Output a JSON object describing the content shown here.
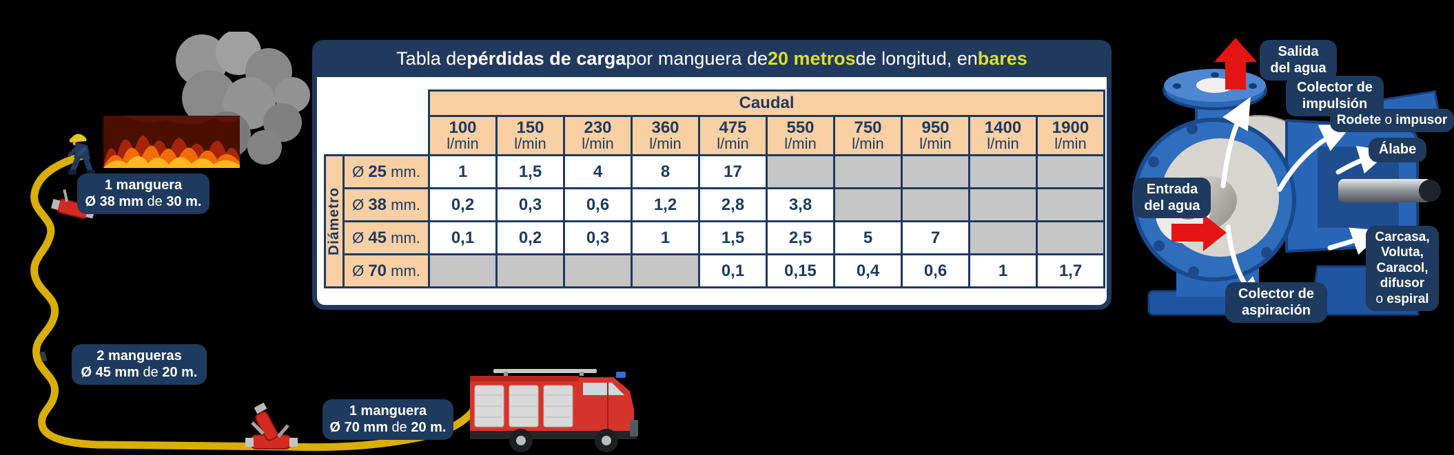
{
  "table": {
    "title": {
      "p1": "Tabla de ",
      "p2": "pérdidas de carga",
      "p3": " por manguera de ",
      "p4": "20 metros",
      "p5": " de longitud, en ",
      "p6": "bares"
    },
    "caudal_header": "Caudal",
    "diameter_header": "Diámetro",
    "unit": "l/min",
    "flows": [
      "100",
      "150",
      "230",
      "360",
      "475",
      "550",
      "750",
      "950",
      "1400",
      "1900"
    ],
    "diameter_prefix": "Ø",
    "diameter_unit": "mm.",
    "rows": [
      {
        "diameter": "25",
        "values": [
          "1",
          "1,5",
          "4",
          "8",
          "17",
          "",
          "",
          "",
          "",
          ""
        ]
      },
      {
        "diameter": "38",
        "values": [
          "0,2",
          "0,3",
          "0,6",
          "1,2",
          "2,8",
          "3,8",
          "",
          "",
          "",
          ""
        ]
      },
      {
        "diameter": "45",
        "values": [
          "0,1",
          "0,2",
          "0,3",
          "1",
          "1,5",
          "2,5",
          "5",
          "7",
          "",
          ""
        ]
      },
      {
        "diameter": "70",
        "values": [
          "",
          "",
          "",
          "",
          "0,1",
          "0,15",
          "0,4",
          "0,6",
          "1",
          "1,7"
        ]
      }
    ]
  },
  "hose_chips": [
    {
      "line1": "1 manguera",
      "l2_bold1": "Ø 38 mm",
      "l2_norm": " de ",
      "l2_bold2": "30 m."
    },
    {
      "line1": "2 mangueras",
      "l2_bold1": "Ø 45 mm",
      "l2_norm": " de ",
      "l2_bold2": "20 m."
    },
    {
      "line1": "1 manguera",
      "l2_bold1": "Ø 70 mm",
      "l2_norm": " de ",
      "l2_bold2": "20 m."
    }
  ],
  "pump": {
    "salida": "Salida\ndel agua",
    "impulsion": "Colector de\nimpulsión",
    "rodete": {
      "a": "Rodete ",
      "b": "o",
      "c": " impusor"
    },
    "alabe": "Álabe",
    "entrada": "Entrada\ndel agua",
    "carcasa": {
      "a": "Carcasa,\nVoluta,\nCaracol,\ndifusor",
      "b": "o",
      "c": " espiral"
    },
    "aspiracion": "Colector de\naspiración"
  },
  "colors": {
    "navy": "#1e3a5e",
    "peach": "#f9cfa4",
    "gray_cell": "#c6c6c6",
    "yellow_highlight": "#d9e02b",
    "hose_yellow": "#d9ae06",
    "truck_red": "#d5342b",
    "pump_blue": "#2f6dbd",
    "red_arrow": "#e51414"
  }
}
